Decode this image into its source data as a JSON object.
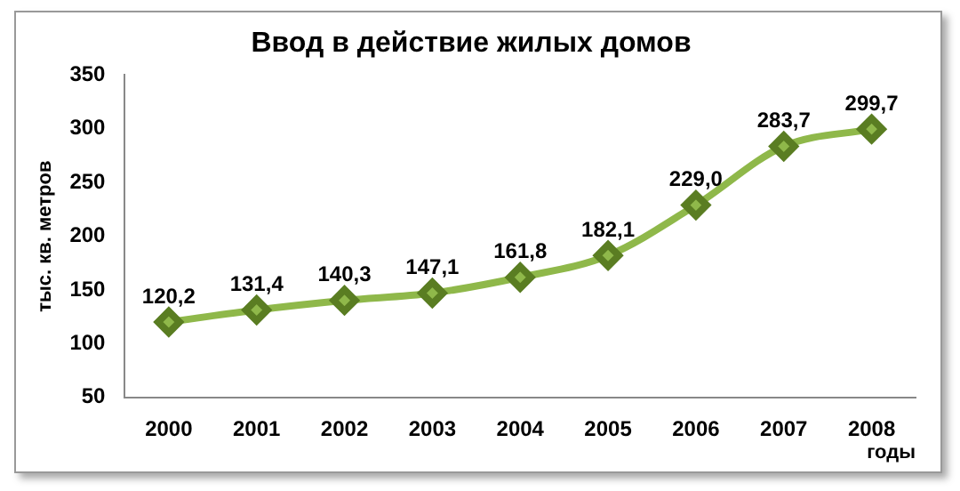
{
  "chart_data": {
    "type": "line",
    "title": "Ввод в действие жилых домов",
    "xlabel": "годы",
    "ylabel": "тыс. кв. метров",
    "categories": [
      "2000",
      "2001",
      "2002",
      "2003",
      "2004",
      "2005",
      "2006",
      "2007",
      "2008"
    ],
    "series": [
      {
        "color": "#8fb84a",
        "values": [
          120.2,
          131.4,
          140.3,
          147.1,
          161.8,
          182.1,
          229.0,
          283.7,
          299.7
        ],
        "value_labels": [
          "120,2",
          "131,4",
          "140,3",
          "147,1",
          "161,8",
          "182,1",
          "229,0",
          "283,7",
          "299,7"
        ]
      }
    ],
    "ylim": [
      50,
      350
    ],
    "yticks": [
      50,
      100,
      150,
      200,
      250,
      300,
      350
    ],
    "grid": false,
    "legend": false,
    "marker": "diamond",
    "line_style": "solid"
  }
}
